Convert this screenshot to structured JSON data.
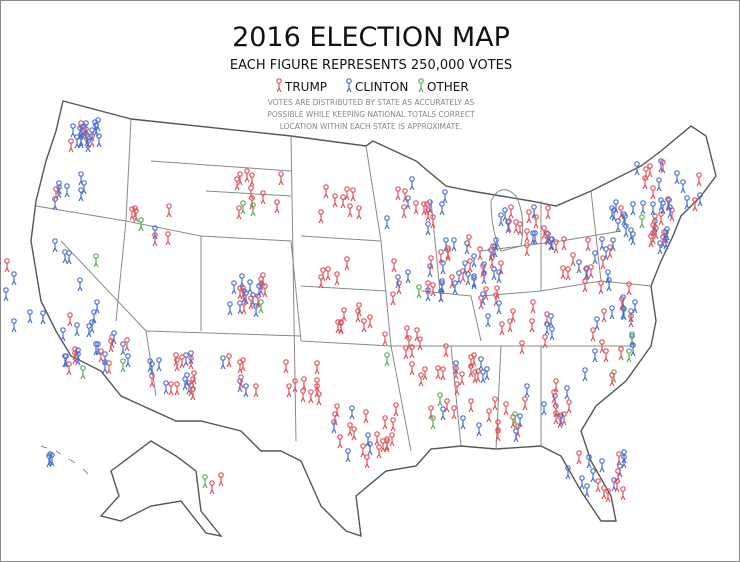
{
  "header": {
    "title": "2016 ELECTION MAP",
    "subtitle": "EACH FIGURE REPRESENTS 250,000 VOTES"
  },
  "legend": [
    {
      "name": "TRUMP",
      "color": "#e0525a"
    },
    {
      "name": "CLINTON",
      "color": "#4a6fd0"
    },
    {
      "name": "OTHER",
      "color": "#5aaa5a"
    }
  ],
  "note": [
    "VOTES ARE DISTRIBUTED BY STATE AS ACCURATELY AS",
    "POSSIBLE WHILE KEEPING NATIONAL TOTALS CORRECT",
    "LOCATION WITHIN EACH STATE IS APPROXIMATE."
  ]
}
